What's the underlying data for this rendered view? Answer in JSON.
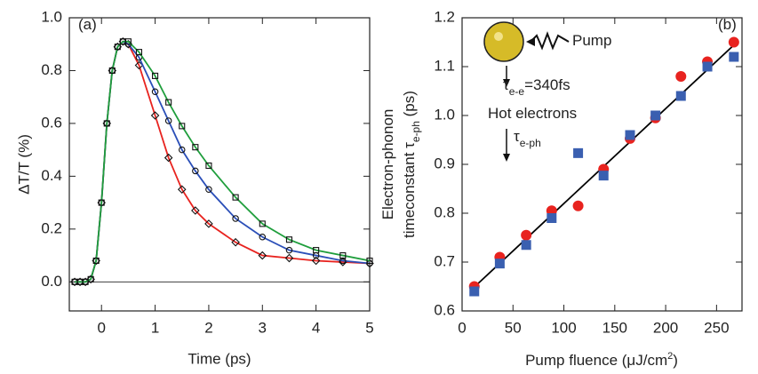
{
  "chart_data": [
    {
      "type": "line",
      "ylabel": "ΔT/T (%)",
      "xlabel": "Time (ps)",
      "annotations": [
        [
          "(a)"
        ]
      ],
      "x": [
        -0.5,
        -0.4,
        -0.3,
        -0.2,
        -0.1,
        0,
        0.1,
        0.2,
        0.3,
        0.4,
        0.5,
        0.7,
        1,
        1.25,
        1.5,
        1.75,
        2,
        2.5,
        3,
        3.5,
        4,
        4.5,
        5
      ],
      "series": [
        {
          "color": "#e8231f",
          "marker": "diamond",
          "values": [
            0,
            0,
            0,
            0.01,
            0.08,
            0.3,
            0.6,
            0.8,
            0.89,
            0.91,
            0.9,
            0.82,
            0.63,
            0.47,
            0.35,
            0.27,
            0.22,
            0.15,
            0.1,
            0.09,
            0.08,
            0.075,
            0.07
          ]
        },
        {
          "color": "#2b4fb8",
          "marker": "circle",
          "values": [
            0,
            0,
            0,
            0.01,
            0.08,
            0.3,
            0.6,
            0.8,
            0.89,
            0.91,
            0.9,
            0.85,
            0.72,
            0.61,
            0.5,
            0.42,
            0.35,
            0.24,
            0.17,
            0.12,
            0.1,
            0.08,
            0.07
          ]
        },
        {
          "color": "#1f9e3c",
          "marker": "square",
          "values": [
            0,
            0,
            0,
            0.01,
            0.08,
            0.3,
            0.6,
            0.8,
            0.89,
            0.91,
            0.91,
            0.87,
            0.78,
            0.68,
            0.59,
            0.51,
            0.44,
            0.32,
            0.22,
            0.16,
            0.12,
            0.1,
            0.08
          ]
        }
      ],
      "xlim": [
        -0.6,
        5
      ],
      "ylim": [
        -0.11,
        1.0
      ],
      "xticks": [
        0,
        1,
        2,
        3,
        4,
        5
      ],
      "yticks": [
        {
          "value": 0,
          "label": "0.0"
        },
        0.2,
        0.4,
        0.6,
        0.8,
        {
          "value": 1,
          "label": "1.0"
        }
      ]
    },
    {
      "type": "scatter",
      "ylabel": [
        [
          "Electron-phonon"
        ],
        [
          "timeconstant τ",
          "e-ph",
          " (ps)"
        ]
      ],
      "xlabel": [
        "Pump fluence (μJ/cm",
        "2",
        ")"
      ],
      "annotations": [
        [
          "(b)"
        ],
        [
          "Pump"
        ],
        [
          "τ",
          "e-e",
          "=340fs"
        ],
        [
          "Hot electrons"
        ],
        [
          "τ",
          "e-ph"
        ]
      ],
      "x": [
        12,
        37,
        63,
        88,
        114,
        139,
        165,
        190,
        215,
        241,
        267
      ],
      "series": [
        {
          "color": "#e8231f",
          "marker": "circle",
          "values": [
            0.65,
            0.71,
            0.755,
            0.805,
            0.815,
            0.89,
            0.953,
            0.995,
            1.08,
            1.11,
            1.15
          ]
        },
        {
          "color": "#3a5fb0",
          "marker": "square",
          "values": [
            0.64,
            0.697,
            0.735,
            0.79,
            0.923,
            0.877,
            0.96,
            1.0,
            1.04,
            1.1,
            1.12
          ]
        }
      ],
      "fit_line": {
        "color": "#000000",
        "x": [
          10,
          270
        ],
        "values": [
          0.645,
          1.15
        ]
      },
      "xlim": [
        0,
        275
      ],
      "ylim": [
        0.6,
        1.2
      ],
      "xticks": [
        0,
        50,
        100,
        150,
        200,
        250
      ],
      "yticks": [
        0.6,
        0.7,
        0.8,
        0.9,
        {
          "value": 1,
          "label": "1.0"
        },
        1.1,
        1.2
      ]
    }
  ]
}
